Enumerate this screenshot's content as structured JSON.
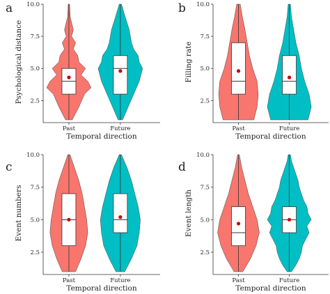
{
  "colors": {
    "past": "#F8766D",
    "future": "#00BFC4",
    "mean_point": "#CC0000",
    "box_fill": "#FFFFFF",
    "outline": "#333333"
  },
  "chart_data": [
    {
      "panel": "a",
      "type": "violin",
      "categories": [
        "Past",
        "Future"
      ],
      "xlabel": "Temporal direction",
      "ylabel": "Psychological distance",
      "ylim": [
        1,
        10
      ],
      "yticks": [
        "2.5",
        "5.0",
        "7.5",
        "10.0"
      ],
      "series": [
        {
          "category": "Past",
          "min": 1,
          "q1": 3,
          "median": 4,
          "q3": 5,
          "max": 10,
          "mean": 4.3,
          "density": [
            [
              1,
              0.15
            ],
            [
              2,
              0.45
            ],
            [
              3,
              0.7
            ],
            [
              3.5,
              1.0
            ],
            [
              4,
              0.85
            ],
            [
              4.5,
              0.55
            ],
            [
              5,
              0.75
            ],
            [
              5.5,
              0.45
            ],
            [
              6,
              0.4
            ],
            [
              6.5,
              0.2
            ],
            [
              7,
              0.3
            ],
            [
              7.5,
              0.12
            ],
            [
              8,
              0.2
            ],
            [
              9,
              0.06
            ],
            [
              10,
              0.03
            ]
          ]
        },
        {
          "category": "Future",
          "min": 1,
          "q1": 3,
          "median": 5,
          "q3": 6,
          "max": 10,
          "mean": 4.8,
          "density": [
            [
              1,
              0.1
            ],
            [
              2,
              0.35
            ],
            [
              3,
              0.6
            ],
            [
              4,
              0.85
            ],
            [
              5,
              1.0
            ],
            [
              5.5,
              0.85
            ],
            [
              6,
              0.8
            ],
            [
              6.5,
              0.6
            ],
            [
              7,
              0.5
            ],
            [
              8,
              0.4
            ],
            [
              9,
              0.22
            ],
            [
              10,
              0.05
            ]
          ]
        }
      ]
    },
    {
      "panel": "b",
      "type": "violin",
      "categories": [
        "Past",
        "Future"
      ],
      "xlabel": "Temporal direction",
      "ylabel": "Filling rate",
      "ylim": [
        1,
        10
      ],
      "yticks": [
        "2.5",
        "5.0",
        "7.5",
        "10.0"
      ],
      "series": [
        {
          "category": "Past",
          "min": 1,
          "q1": 3,
          "median": 4,
          "q3": 7,
          "max": 10,
          "mean": 4.8,
          "density": [
            [
              1,
              0.7
            ],
            [
              2,
              0.85
            ],
            [
              3,
              0.9
            ],
            [
              4,
              0.85
            ],
            [
              5,
              0.65
            ],
            [
              6,
              0.5
            ],
            [
              7,
              0.4
            ],
            [
              8,
              0.3
            ],
            [
              9,
              0.18
            ],
            [
              10,
              0.08
            ]
          ]
        },
        {
          "category": "Future",
          "min": 1,
          "q1": 3,
          "median": 4,
          "q3": 6,
          "max": 10,
          "mean": 4.3,
          "density": [
            [
              1,
              0.85
            ],
            [
              2,
              1.0
            ],
            [
              3,
              0.9
            ],
            [
              4,
              0.7
            ],
            [
              5,
              0.55
            ],
            [
              6,
              0.45
            ],
            [
              7,
              0.3
            ],
            [
              8,
              0.2
            ],
            [
              9,
              0.1
            ],
            [
              10,
              0.05
            ]
          ]
        }
      ]
    },
    {
      "panel": "c",
      "type": "violin",
      "categories": [
        "Past",
        "Future"
      ],
      "xlabel": "Temporal direction",
      "ylabel": "Event numbers",
      "ylim": [
        1,
        10
      ],
      "yticks": [
        "2.5",
        "5.0",
        "7.5",
        "10.0"
      ],
      "series": [
        {
          "category": "Past",
          "min": 1,
          "q1": 3,
          "median": 5,
          "q3": 7,
          "max": 10,
          "mean": 5.0,
          "density": [
            [
              1,
              0.3
            ],
            [
              2,
              0.55
            ],
            [
              3,
              0.75
            ],
            [
              4,
              0.85
            ],
            [
              5,
              0.8
            ],
            [
              6,
              0.7
            ],
            [
              7,
              0.6
            ],
            [
              8,
              0.45
            ],
            [
              9,
              0.25
            ],
            [
              10,
              0.05
            ]
          ]
        },
        {
          "category": "Future",
          "min": 1,
          "q1": 4,
          "median": 5,
          "q3": 7,
          "max": 10,
          "mean": 5.2,
          "density": [
            [
              1,
              0.2
            ],
            [
              2,
              0.5
            ],
            [
              3,
              0.75
            ],
            [
              4,
              0.85
            ],
            [
              5,
              0.9
            ],
            [
              6,
              0.8
            ],
            [
              7,
              0.65
            ],
            [
              8,
              0.5
            ],
            [
              9,
              0.3
            ],
            [
              10,
              0.05
            ]
          ]
        }
      ]
    },
    {
      "panel": "d",
      "type": "violin",
      "categories": [
        "Past",
        "Future"
      ],
      "xlabel": "Temporal direction",
      "ylabel": "Event length",
      "ylim": [
        1,
        10
      ],
      "yticks": [
        "2.5",
        "5.0",
        "7.5",
        "10.0"
      ],
      "series": [
        {
          "category": "Past",
          "min": 1,
          "q1": 3,
          "median": 4,
          "q3": 6,
          "max": 10,
          "mean": 4.7,
          "density": [
            [
              1,
              0.2
            ],
            [
              2,
              0.55
            ],
            [
              3,
              0.8
            ],
            [
              4,
              0.95
            ],
            [
              5,
              0.85
            ],
            [
              6,
              0.65
            ],
            [
              7,
              0.45
            ],
            [
              8,
              0.3
            ],
            [
              9,
              0.15
            ],
            [
              10,
              0.04
            ]
          ]
        },
        {
          "category": "Future",
          "min": 1,
          "q1": 4,
          "median": 5,
          "q3": 6,
          "max": 10,
          "mean": 5.0,
          "density": [
            [
              1,
              0.1
            ],
            [
              1.5,
              0.3
            ],
            [
              2,
              0.45
            ],
            [
              2.5,
              0.55
            ],
            [
              3,
              0.6
            ],
            [
              3.5,
              0.75
            ],
            [
              4,
              0.9
            ],
            [
              4.5,
              0.8
            ],
            [
              5,
              1.0
            ],
            [
              5.5,
              0.85
            ],
            [
              6,
              0.8
            ],
            [
              6.5,
              0.65
            ],
            [
              7,
              0.55
            ],
            [
              7.5,
              0.45
            ],
            [
              8,
              0.4
            ],
            [
              8.5,
              0.3
            ],
            [
              9,
              0.2
            ],
            [
              9.5,
              0.1
            ],
            [
              10,
              0.05
            ]
          ]
        }
      ]
    }
  ]
}
